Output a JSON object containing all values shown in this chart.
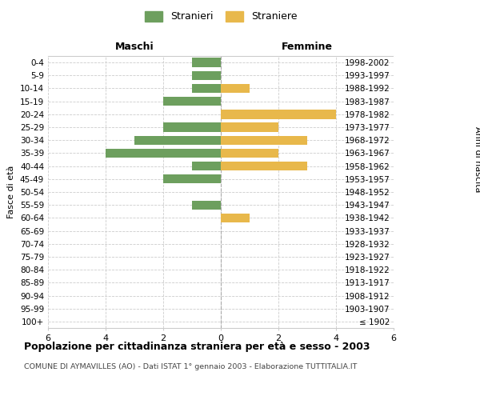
{
  "age_groups": [
    "100+",
    "95-99",
    "90-94",
    "85-89",
    "80-84",
    "75-79",
    "70-74",
    "65-69",
    "60-64",
    "55-59",
    "50-54",
    "45-49",
    "40-44",
    "35-39",
    "30-34",
    "25-29",
    "20-24",
    "15-19",
    "10-14",
    "5-9",
    "0-4"
  ],
  "birth_years": [
    "≤ 1902",
    "1903-1907",
    "1908-1912",
    "1913-1917",
    "1918-1922",
    "1923-1927",
    "1928-1932",
    "1933-1937",
    "1938-1942",
    "1943-1947",
    "1948-1952",
    "1953-1957",
    "1958-1962",
    "1963-1967",
    "1968-1972",
    "1973-1977",
    "1978-1982",
    "1983-1987",
    "1988-1992",
    "1993-1997",
    "1998-2002"
  ],
  "maschi": [
    0,
    0,
    0,
    0,
    0,
    0,
    0,
    0,
    0,
    1,
    0,
    2,
    1,
    4,
    3,
    2,
    0,
    2,
    1,
    1,
    1
  ],
  "femmine": [
    0,
    0,
    0,
    0,
    0,
    0,
    0,
    0,
    1,
    0,
    0,
    0,
    3,
    2,
    3,
    2,
    4,
    0,
    1,
    0,
    0
  ],
  "maschi_color": "#6d9f5e",
  "femmine_color": "#e8b84b",
  "title": "Popolazione per cittadinanza straniera per età e sesso - 2003",
  "subtitle": "COMUNE DI AYMAVILLES (AO) - Dati ISTAT 1° gennaio 2003 - Elaborazione TUTTITALIA.IT",
  "xlabel_left": "Maschi",
  "xlabel_right": "Femmine",
  "ylabel_left": "Fasce di età",
  "ylabel_right": "Anni di nascita",
  "legend_stranieri": "Stranieri",
  "legend_straniere": "Straniere",
  "xlim": 6,
  "background_color": "#ffffff",
  "grid_color": "#cccccc",
  "bar_height": 0.7
}
